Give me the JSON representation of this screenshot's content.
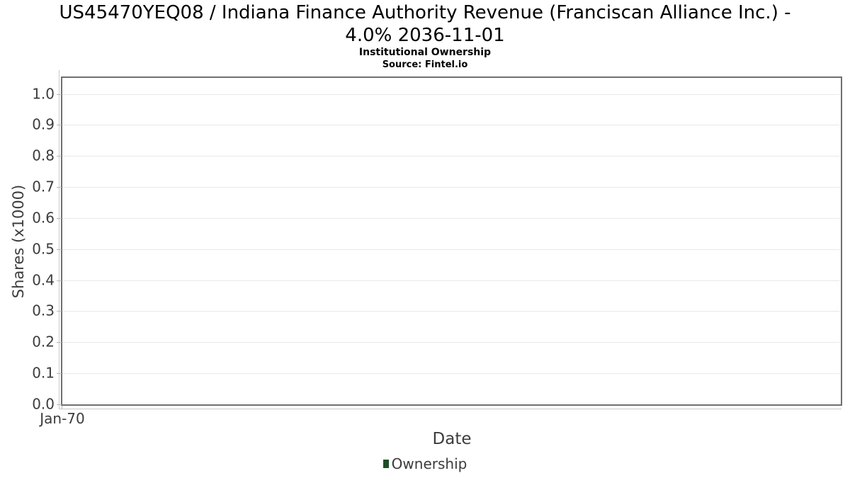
{
  "chart_data": {
    "type": "line",
    "title": "US45470YEQ08 / Indiana Finance Authority Revenue (Franciscan Alliance Inc.) - 4.0% 2036-11-01",
    "title_lines": [
      "US45470YEQ08 / Indiana Finance Authority Revenue (Franciscan Alliance Inc.) -",
      "4.0% 2036-11-01"
    ],
    "subtitle": "Institutional Ownership",
    "source": "Source: Fintel.io",
    "xlabel": "Date",
    "ylabel": "Shares (x1000)",
    "x_ticks": [
      "Jan-70"
    ],
    "y_ticks": [
      "0.0",
      "0.1",
      "0.2",
      "0.3",
      "0.4",
      "0.5",
      "0.6",
      "0.7",
      "0.8",
      "0.9",
      "1.0"
    ],
    "ylim": [
      0.0,
      1.05
    ],
    "grid": true,
    "legend_position": "bottom-center",
    "legend": {
      "items": [
        {
          "label": "Ownership",
          "color": "#1e4d2a"
        }
      ]
    },
    "series": [
      {
        "name": "Ownership",
        "color": "#1e4d2a",
        "x": [],
        "values": []
      }
    ]
  }
}
